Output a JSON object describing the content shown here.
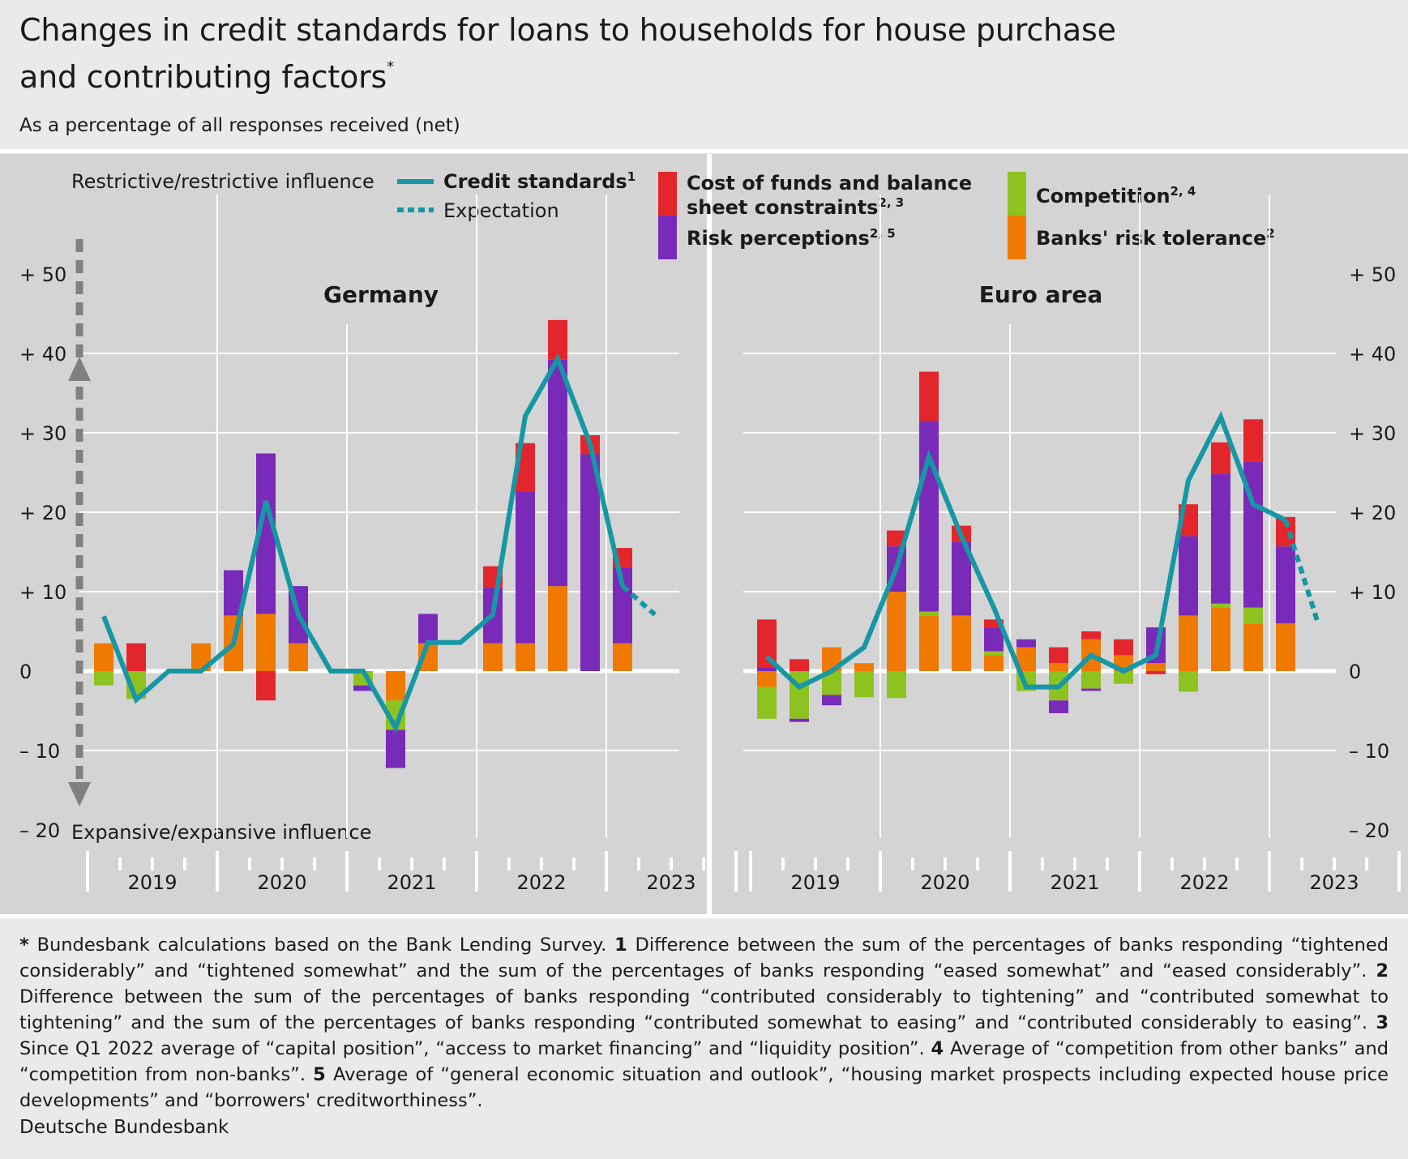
{
  "title_line1": "Changes in credit standards for loans to households for house purchase",
  "title_line2": "and contributing factors",
  "title_sup": "*",
  "subtitle": "As a percentage of all responses received (net)",
  "axis": {
    "top_label": "Restrictive/restrictive influence",
    "bottom_label": "Expansive/expansive influence",
    "ticks": [
      "+ 50",
      "+ 40",
      "+ 30",
      "+ 20",
      "+ 10",
      "0",
      "– 10",
      "– 20"
    ],
    "tick_values": [
      50,
      40,
      30,
      20,
      10,
      0,
      -10,
      -20
    ]
  },
  "legend": {
    "credit": "Credit standards",
    "credit_sup": "1",
    "expectation": "Expectation",
    "cost_line1": "Cost of funds and balance",
    "cost_line2": "sheet constraints",
    "cost_sup": "2, 3",
    "risk": "Risk perceptions",
    "risk_sup": "2, 5",
    "competition": "Competition",
    "competition_sup": "2, 4",
    "tolerance": "Banks' risk tolerance",
    "tolerance_sup": "2"
  },
  "colors": {
    "cost": "#e3262c",
    "risk": "#7a2ab8",
    "competition": "#8dc21f",
    "tolerance": "#f07a00",
    "line": "#1597a5",
    "panel": "#d4d4d4",
    "grid": "#ffffff"
  },
  "chart_data": [
    {
      "type": "bar",
      "name": "Germany",
      "title": "Germany",
      "ylim": [
        -20,
        50
      ],
      "years": [
        "2019",
        "2020",
        "2021",
        "2022",
        "2023"
      ],
      "quarters_per_year": 4,
      "series": [
        {
          "key": "tolerance",
          "name": "Banks' risk tolerance",
          "values": [
            3.5,
            0,
            null,
            3.5,
            7,
            7.2,
            3.5,
            null,
            null,
            -3.7,
            3.5,
            null,
            3.5,
            3.5,
            10.7,
            0,
            3.5
          ]
        },
        {
          "key": "competition",
          "name": "Competition",
          "values": [
            -1.8,
            -3.5,
            null,
            0,
            0,
            0,
            0,
            null,
            -1.8,
            -3.7,
            0,
            null,
            0,
            0,
            0,
            0,
            0
          ]
        },
        {
          "key": "risk",
          "name": "Risk perceptions",
          "values": [
            0,
            0,
            null,
            0,
            5.7,
            20.2,
            7.2,
            null,
            -0.7,
            -4.8,
            3.7,
            null,
            7,
            19.1,
            28.5,
            27.3,
            9.5
          ]
        },
        {
          "key": "cost",
          "name": "Cost of funds and balance sheet constraints",
          "values": [
            0,
            3.5,
            null,
            0,
            0,
            -3.7,
            0,
            null,
            0,
            0,
            0,
            null,
            2.7,
            6.1,
            5,
            2.4,
            2.5
          ]
        }
      ],
      "credit_standards": [
        6.9,
        -3.6,
        0,
        0,
        3.4,
        21.4,
        7.1,
        0,
        0,
        -7.1,
        3.6,
        3.6,
        7.1,
        32.1,
        39.3,
        28.6,
        10.7
      ],
      "expectation": [
        10.7,
        7.1
      ]
    },
    {
      "type": "bar",
      "name": "Euro area",
      "title": "Euro area",
      "ylim": [
        -20,
        50
      ],
      "years": [
        "2019",
        "2020",
        "2021",
        "2022",
        "2023"
      ],
      "quarters_per_year": 4,
      "series": [
        {
          "key": "tolerance",
          "name": "Banks' risk tolerance",
          "values": [
            -2,
            0,
            3,
            1,
            10,
            7,
            7,
            2,
            3,
            1,
            4,
            2,
            1,
            7,
            8,
            6,
            6
          ]
        },
        {
          "key": "competition",
          "name": "Competition",
          "values": [
            -4,
            -6,
            -3,
            -3.3,
            -3.4,
            0.5,
            0,
            0.5,
            -2.5,
            -3.7,
            -2.2,
            -1.6,
            0,
            -2.6,
            0.5,
            2,
            0
          ]
        },
        {
          "key": "risk",
          "name": "Risk perceptions",
          "values": [
            0.5,
            -0.4,
            -1.3,
            0,
            5.7,
            24,
            9.3,
            3,
            1,
            -1.6,
            -0.3,
            0,
            4.5,
            10,
            16.3,
            18.4,
            9.7
          ]
        },
        {
          "key": "cost",
          "name": "Cost of funds and balance sheet constraints",
          "values": [
            6,
            1.5,
            0,
            0,
            2,
            6.2,
            2,
            1,
            0,
            2,
            1,
            2,
            -0.4,
            4,
            4,
            5.3,
            3.7
          ]
        }
      ],
      "credit_standards": [
        1.8,
        -2,
        0,
        3,
        13,
        27,
        17,
        8,
        -2,
        -2,
        2,
        0,
        2,
        24,
        32,
        21,
        19
      ],
      "expectation": [
        19,
        6
      ]
    }
  ],
  "footnote": {
    "p0": "Bundesbank calculations based on the Bank Lending Survey.",
    "n1": "1",
    "p1": "Difference between the sum of the percentages of banks responding “tightened considerably” and “tightened somewhat” and the sum of the percentages of banks responding “eased somewhat” and “eased considerably”.",
    "n2": "2",
    "p2": "Difference between the sum of the percentages of banks responding “contributed considerably to tightening” and “contributed somewhat to tightening” and the sum of the percentages of banks responding “contributed somewhat to easing” and “contributed considerably to easing”.",
    "n3": "3",
    "p3": "Since Q1 2022 average of “capital position”, “access to market financing” and “liquidity position”.",
    "n4": "4",
    "p4": "Average of “competition from other banks” and “competition from non-banks”.",
    "n5": "5",
    "p5": "Average of “general economic situation and outlook”, “housing market prospects including expected house price developments” and  “borrowers' creditworthiness”."
  },
  "source": "Deutsche Bundesbank"
}
